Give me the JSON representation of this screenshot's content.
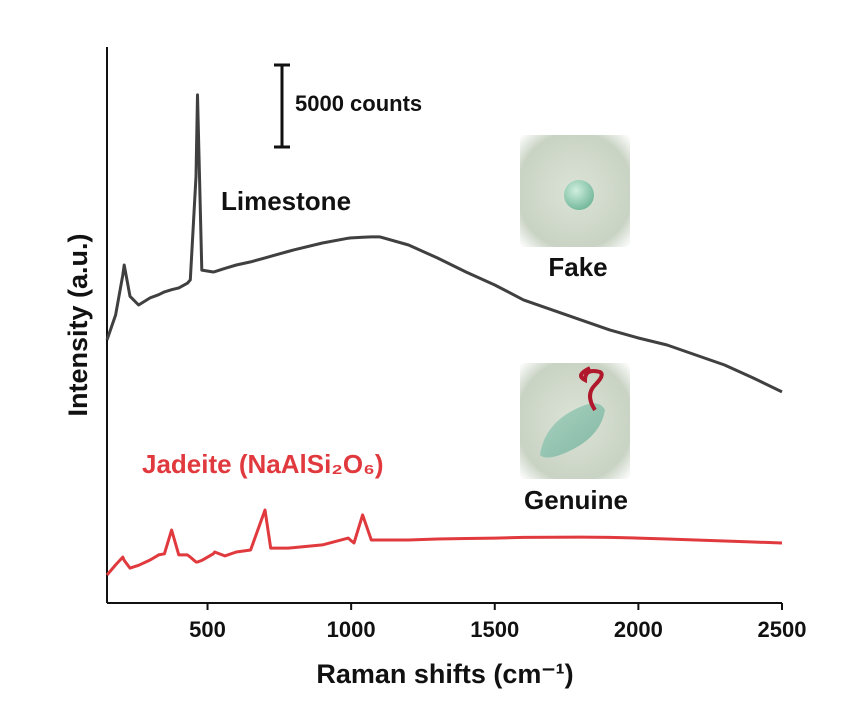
{
  "chart_data": {
    "type": "line",
    "x_label": "Raman shifts (cm⁻¹)",
    "y_label": "Intensity (a.u.)",
    "x": [
      150,
      180,
      205,
      210,
      230,
      260,
      300,
      330,
      350,
      375,
      400,
      430,
      440,
      460,
      465,
      480,
      520,
      525,
      560,
      600,
      650,
      700,
      720,
      780,
      800,
      900,
      990,
      1000,
      1010,
      1040,
      1070,
      1100,
      1200,
      1300,
      1400,
      1500,
      1600,
      1700,
      1800,
      1900,
      2000,
      2100,
      2200,
      2300,
      2400,
      2500
    ],
    "series": [
      {
        "name": "Limestone",
        "color": "#404040",
        "values": [
          16040,
          17560,
          20000,
          20610,
          18700,
          18170,
          18600,
          18800,
          18970,
          19100,
          19210,
          19500,
          19700,
          26000,
          30980,
          20300,
          20180,
          20200,
          20400,
          20610,
          20800,
          21040,
          21140,
          21430,
          21530,
          21950,
          22240,
          22260,
          22270,
          22300,
          22320,
          22320,
          21830,
          21040,
          20180,
          19390,
          18480,
          17870,
          17260,
          16650,
          16160,
          15730,
          15120,
          14510,
          13720,
          12870
        ]
      },
      {
        "name": "Jadeite (NaAlSi₂O₆)",
        "color": "#e0393e",
        "values": [
          1710,
          2320,
          2800,
          2600,
          2130,
          2300,
          2620,
          2930,
          3000,
          4450,
          2930,
          2930,
          2800,
          2500,
          2500,
          2600,
          3000,
          3110,
          2870,
          3110,
          3230,
          5670,
          3350,
          3350,
          3380,
          3540,
          3960,
          3800,
          3660,
          5370,
          3840,
          3840,
          3840,
          3900,
          3930,
          3960,
          4000,
          4010,
          4020,
          4000,
          3960,
          3900,
          3840,
          3780,
          3720,
          3660
        ]
      }
    ],
    "xlim": [
      150,
      2500
    ],
    "xticks": [
      500,
      1000,
      1500,
      2000,
      2500
    ],
    "ylim": [
      0,
      33900
    ],
    "scale_bar": {
      "value": 5000,
      "label": "5000 counts"
    },
    "insets": [
      {
        "label": "Fake"
      },
      {
        "label": "Genuine"
      }
    ]
  }
}
